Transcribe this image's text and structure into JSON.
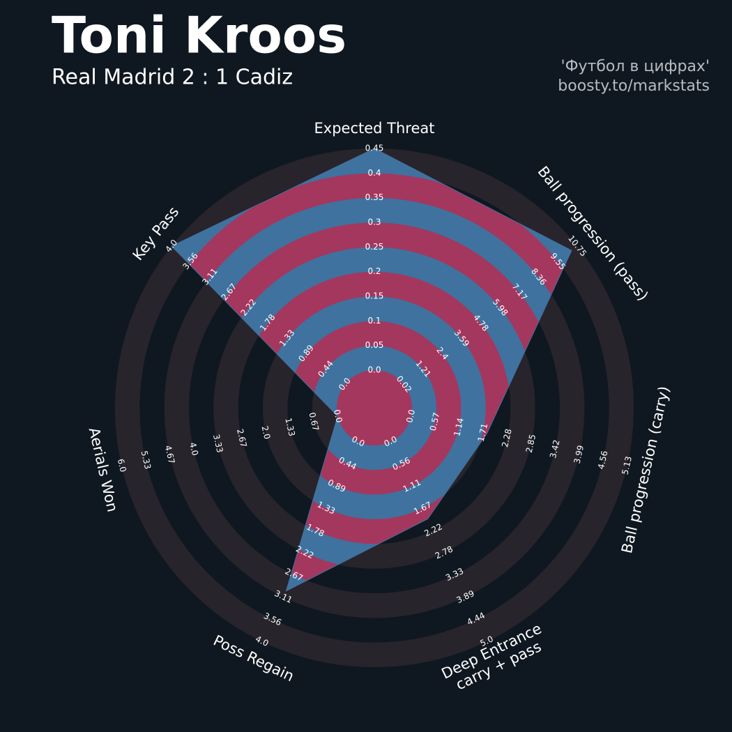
{
  "chart_data": {
    "type": "radar",
    "title": "Toni Kroos",
    "subtitle": "Real Madrid 2 : 1 Cadiz",
    "credits": [
      "'Футбол в цифрах'",
      "boosty.to/markstats"
    ],
    "categories": [
      "Expected Threat",
      "Ball progression (pass)",
      "Ball progression (carry)",
      "Deep Entrance\ncarry + pass",
      "Poss Regain",
      "Aerials Won",
      "Key Pass"
    ],
    "ranges": [
      [
        0,
        0.45
      ],
      [
        0.02,
        10.75
      ],
      [
        0,
        5.13
      ],
      [
        0,
        5
      ],
      [
        0,
        4
      ],
      [
        0,
        6
      ],
      [
        0,
        4
      ]
    ],
    "ticks": [
      [
        {
          "value": 0,
          "label": "0.0"
        },
        0.05,
        0.1,
        0.15,
        0.2,
        0.25,
        0.3,
        0.35,
        0.4,
        0.45
      ],
      [
        0.02,
        1.21,
        2.4,
        3.59,
        4.78,
        5.98,
        7.17,
        8.36,
        9.55,
        10.75
      ],
      [
        {
          "value": 0,
          "label": "0.0"
        },
        0.57,
        1.14,
        1.71,
        2.28,
        2.85,
        3.42,
        3.99,
        4.56,
        5.13
      ],
      [
        {
          "value": 0,
          "label": "0.0"
        },
        0.56,
        1.11,
        1.67,
        2.22,
        2.78,
        3.33,
        3.89,
        4.44,
        {
          "value": 5,
          "label": "5.0"
        }
      ],
      [
        {
          "value": 0,
          "label": "0.0"
        },
        0.44,
        0.89,
        1.33,
        1.78,
        2.22,
        2.67,
        3.11,
        3.56,
        {
          "value": 4,
          "label": "4.0"
        }
      ],
      [
        {
          "value": 0,
          "label": "0.0"
        },
        0.67,
        1.33,
        {
          "value": 2,
          "label": "2.0"
        },
        2.67,
        3.33,
        {
          "value": 4,
          "label": "4.0"
        },
        4.67,
        5.33,
        {
          "value": 6,
          "label": "6.0"
        }
      ],
      [
        {
          "value": 0,
          "label": "0.0"
        },
        0.44,
        0.89,
        1.33,
        1.78,
        2.22,
        2.67,
        3.11,
        3.56,
        {
          "value": 4,
          "label": "4.0"
        }
      ]
    ],
    "series": [
      {
        "color": "#3f729f",
        "alt_color": "#a4375e",
        "values": [
          0.45,
          10.41,
          1.8,
          1.93,
          2.99,
          0,
          4
        ]
      }
    ],
    "ring_color": "#28242b",
    "background": "#0f1820"
  }
}
